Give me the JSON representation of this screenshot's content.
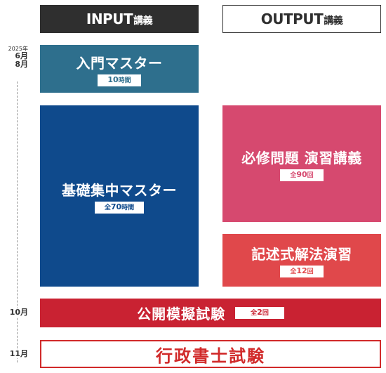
{
  "headers": {
    "input_main": "INPUT",
    "input_sub": "講義",
    "output_main": "OUTPUT",
    "output_sub": "講義"
  },
  "timeline": {
    "year": "2025年",
    "start_month": "6月",
    "end_month": "8月",
    "mock_month": "10月",
    "exam_month": "11月"
  },
  "blocks": {
    "intro": {
      "title": "入門マスター",
      "pill_num": "10",
      "pill_unit": "時間"
    },
    "basic": {
      "title": "基礎集中マスター",
      "pill_prefix": "全",
      "pill_num": "70",
      "pill_unit": "時間"
    },
    "must": {
      "title": "必修問題 演習講義",
      "pill_prefix": "全",
      "pill_num": "90",
      "pill_unit": "回"
    },
    "essay": {
      "title": "記述式解法演習",
      "pill_prefix": "全",
      "pill_num": "12",
      "pill_unit": "回"
    },
    "mock": {
      "title": "公開模擬試験",
      "pill_prefix": "全",
      "pill_num": "2",
      "pill_unit": "回"
    },
    "exam": {
      "title": "行政書士試験"
    }
  },
  "colors": {
    "input_header": "#2f2f2f",
    "intro": "#2e6f8d",
    "basic": "#0f4a8c",
    "must": "#d6496f",
    "essay": "#e0484b",
    "mock": "#c92232",
    "exam": "#d12a2a"
  }
}
